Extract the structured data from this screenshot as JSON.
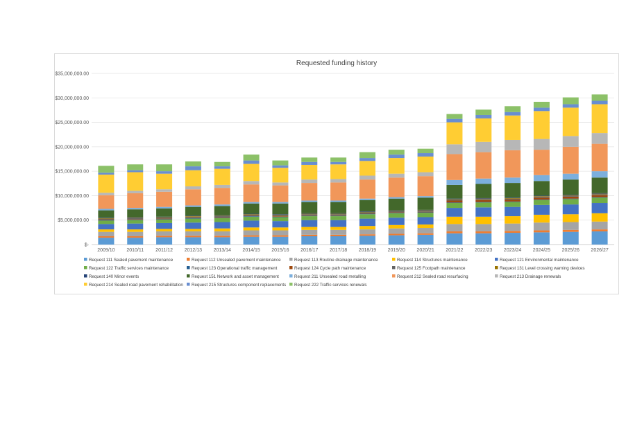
{
  "chart_data": {
    "type": "bar",
    "stacked": true,
    "title": "Requested  funding history",
    "xlabel": "",
    "ylabel": "",
    "ylim": [
      0,
      35000000
    ],
    "yticks": [
      0,
      5000000,
      10000000,
      15000000,
      20000000,
      25000000,
      30000000,
      35000000
    ],
    "ytick_labels": [
      "$-",
      "$5,000,000.00",
      "$10,000,000.00",
      "$15,000,000.00",
      "$20,000,000.00",
      "$25,000,000.00",
      "$30,000,000.00",
      "$35,000,000.00"
    ],
    "grid": true,
    "legend_position": "bottom",
    "categories": [
      "2009/10",
      "2010/11",
      "2011/12",
      "2012/13",
      "2013/14",
      "2014/15",
      "2015/16",
      "2016/17",
      "2017/18",
      "2018/19",
      "2019/20",
      "2020/21",
      "2021/22",
      "2022/23",
      "2023/24",
      "2024/25",
      "2025/26",
      "2026/27"
    ],
    "series": [
      {
        "name": "Request 111 Sealed pavement maintenance",
        "color": "#5b9bd5",
        "values": [
          1400000,
          1400000,
          1500000,
          1500000,
          1500000,
          1600000,
          1600000,
          1700000,
          1700000,
          1800000,
          1900000,
          2000000,
          2300000,
          2300000,
          2400000,
          2500000,
          2600000,
          2700000
        ]
      },
      {
        "name": "Request 112 Unsealed pavement maintenance",
        "color": "#ed7d31",
        "values": [
          300000,
          300000,
          300000,
          300000,
          300000,
          300000,
          300000,
          300000,
          300000,
          300000,
          300000,
          300000,
          400000,
          400000,
          400000,
          400000,
          400000,
          400000
        ]
      },
      {
        "name": "Request 113 Routine drainage maintenance",
        "color": "#a5a5a5",
        "values": [
          900000,
          900000,
          900000,
          900000,
          900000,
          1000000,
          1000000,
          1000000,
          1000000,
          1000000,
          1100000,
          1100000,
          1500000,
          1500000,
          1500000,
          1600000,
          1600000,
          1600000
        ]
      },
      {
        "name": "Request 114 Structures maintenance",
        "color": "#ffc000",
        "values": [
          500000,
          500000,
          500000,
          500000,
          600000,
          600000,
          600000,
          600000,
          600000,
          700000,
          700000,
          700000,
          1500000,
          1500000,
          1500000,
          1600000,
          1600000,
          1700000
        ]
      },
      {
        "name": "Request 121 Environmental maintenance",
        "color": "#4472c4",
        "values": [
          1100000,
          1200000,
          1200000,
          1300000,
          1300000,
          1400000,
          1300000,
          1400000,
          1400000,
          1500000,
          1500000,
          1500000,
          1800000,
          1900000,
          1900000,
          2000000,
          2000000,
          2100000
        ]
      },
      {
        "name": "Request 122 Traffic services maintenance",
        "color": "#70ad47",
        "values": [
          700000,
          700000,
          700000,
          800000,
          800000,
          800000,
          800000,
          800000,
          800000,
          900000,
          900000,
          900000,
          1000000,
          1000000,
          1000000,
          1000000,
          1100000,
          1100000
        ]
      },
      {
        "name": "Request 123 Operational traffic management",
        "color": "#255e91",
        "values": [
          100000,
          100000,
          100000,
          100000,
          100000,
          100000,
          100000,
          100000,
          100000,
          100000,
          100000,
          100000,
          100000,
          100000,
          100000,
          100000,
          100000,
          100000
        ]
      },
      {
        "name": "Request 124 Cycle path maintenance",
        "color": "#9e480e",
        "values": [
          100000,
          100000,
          100000,
          100000,
          100000,
          100000,
          100000,
          100000,
          100000,
          100000,
          100000,
          100000,
          400000,
          400000,
          400000,
          400000,
          400000,
          400000
        ]
      },
      {
        "name": "Request 125 Footpath maintenance",
        "color": "#636363",
        "values": [
          200000,
          200000,
          200000,
          200000,
          200000,
          200000,
          200000,
          200000,
          200000,
          200000,
          200000,
          200000,
          200000,
          200000,
          200000,
          200000,
          200000,
          200000
        ]
      },
      {
        "name": "Request 131 Level crossing warning devices",
        "color": "#997300",
        "values": [
          100000,
          100000,
          100000,
          100000,
          100000,
          100000,
          100000,
          100000,
          100000,
          100000,
          100000,
          100000,
          100000,
          100000,
          100000,
          100000,
          100000,
          100000
        ]
      },
      {
        "name": "Request 140 Minor events",
        "color": "#264478",
        "values": [
          100000,
          100000,
          100000,
          100000,
          100000,
          100000,
          100000,
          100000,
          100000,
          100000,
          100000,
          100000,
          100000,
          100000,
          100000,
          100000,
          100000,
          100000
        ]
      },
      {
        "name": "Request 151 Network and asset management",
        "color": "#43682b",
        "values": [
          1500000,
          1600000,
          1700000,
          1800000,
          1900000,
          2100000,
          2200000,
          2300000,
          2300000,
          2300000,
          2400000,
          2500000,
          2800000,
          2900000,
          3000000,
          3000000,
          3100000,
          3200000
        ]
      },
      {
        "name": "Request 211 Unsealed road metalling",
        "color": "#7cafdd",
        "values": [
          300000,
          300000,
          300000,
          300000,
          300000,
          300000,
          300000,
          300000,
          300000,
          300000,
          300000,
          300000,
          1000000,
          1100000,
          1100000,
          1200000,
          1200000,
          1300000
        ]
      },
      {
        "name": "Request 212 Sealed road resurfacing",
        "color": "#f1975a",
        "values": [
          2800000,
          3000000,
          3100000,
          3300000,
          3400000,
          3600000,
          3400000,
          3600000,
          3700000,
          3900000,
          4000000,
          4100000,
          5300000,
          5400000,
          5600000,
          5200000,
          5500000,
          5600000
        ]
      },
      {
        "name": "Request 213 Drainage renewals",
        "color": "#b7b7b7",
        "values": [
          500000,
          500000,
          500000,
          600000,
          600000,
          700000,
          600000,
          700000,
          700000,
          800000,
          800000,
          800000,
          2000000,
          2100000,
          2100000,
          2200000,
          2200000,
          2200000
        ]
      },
      {
        "name": "Request 214 Sealed road pavement rehabilitation",
        "color": "#ffcd33",
        "values": [
          3700000,
          3800000,
          3200000,
          3300000,
          3300000,
          3500000,
          3000000,
          3000000,
          3000000,
          3000000,
          3200000,
          3200000,
          4500000,
          4800000,
          5000000,
          5700000,
          5800000,
          5900000
        ]
      },
      {
        "name": "Request 215 Structures component replacements",
        "color": "#698ed0",
        "values": [
          400000,
          400000,
          500000,
          800000,
          500000,
          700000,
          500000,
          600000,
          500000,
          600000,
          700000,
          700000,
          700000,
          700000,
          700000,
          700000,
          700000,
          700000
        ]
      },
      {
        "name": "Request 222 Traffic services renewals",
        "color": "#8cc168",
        "values": [
          1400000,
          1200000,
          1400000,
          1000000,
          900000,
          1200000,
          1000000,
          900000,
          900000,
          1200000,
          1000000,
          900000,
          1000000,
          1100000,
          1200000,
          1200000,
          1400000,
          1300000
        ]
      }
    ]
  }
}
